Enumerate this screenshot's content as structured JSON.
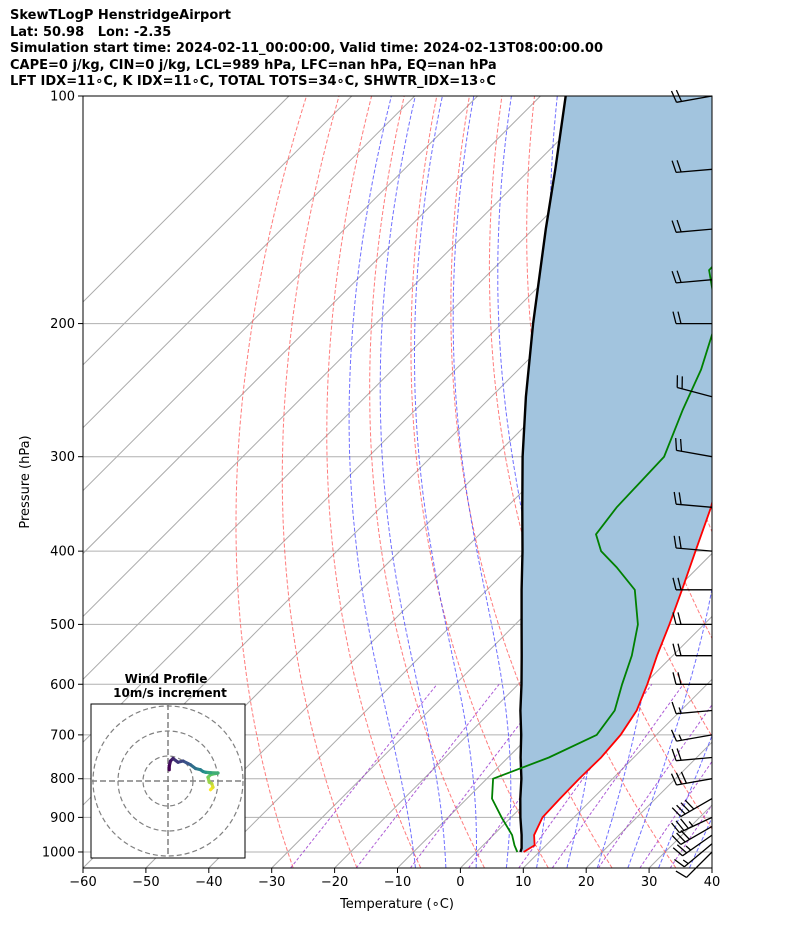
{
  "header": {
    "line1": "SkewTLogP HenstridgeAirport",
    "line2": "Lat: 50.98   Lon: -2.35",
    "line3": "Simulation start time: 2024-02-11_00:00:00, Valid time: 2024-02-13T08:00:00.00",
    "line4": "CAPE=0 j/kg, CIN=0 j/kg, LCL=989 hPa, LFC=nan hPa, EQ=nan hPa",
    "line5": "LFT IDX=11∘C, K IDX=11∘C, TOTAL TOTS=34∘C, SHWTR_IDX=13∘C"
  },
  "chart_data": {
    "type": "line",
    "xlabel": "Temperature (∘C)",
    "ylabel": "Pressure (hPa)",
    "xlim": [
      -60,
      40
    ],
    "ylim": [
      1050,
      100
    ],
    "yscale": "log",
    "xticks": [
      -60,
      -50,
      -40,
      -30,
      -20,
      -10,
      0,
      10,
      20,
      30,
      40
    ],
    "yticks": [
      1000,
      900,
      800,
      700,
      600,
      500,
      400,
      300,
      200,
      100
    ],
    "grid": true,
    "series": [
      {
        "role": "temperature",
        "color": "#ff0000",
        "points": [
          [
            1000,
            7.5
          ],
          [
            980,
            8.2
          ],
          [
            950,
            6.5
          ],
          [
            900,
            5.0
          ],
          [
            850,
            4.8
          ],
          [
            800,
            4.7
          ],
          [
            750,
            4.8
          ],
          [
            700,
            4.3
          ],
          [
            650,
            3.0
          ],
          [
            600,
            0.5
          ],
          [
            550,
            -2.5
          ],
          [
            500,
            -5.5
          ],
          [
            450,
            -9.0
          ],
          [
            400,
            -13.0
          ],
          [
            350,
            -17.5
          ],
          [
            300,
            -23.5
          ],
          [
            260,
            -29.0
          ],
          [
            250,
            -31.0
          ],
          [
            220,
            -31.5
          ],
          [
            200,
            -32.0
          ],
          [
            180,
            -31.5
          ],
          [
            150,
            -29.5
          ],
          [
            130,
            -28.5
          ],
          [
            110,
            -28.5
          ],
          [
            100,
            -29.0
          ]
        ]
      },
      {
        "role": "dewpoint",
        "color": "#008000",
        "points": [
          [
            1000,
            6.5
          ],
          [
            980,
            5.0
          ],
          [
            950,
            3.0
          ],
          [
            900,
            -1.5
          ],
          [
            850,
            -6.0
          ],
          [
            800,
            -9.0
          ],
          [
            750,
            -3.5
          ],
          [
            700,
            0.5
          ],
          [
            650,
            -0.5
          ],
          [
            600,
            -3.5
          ],
          [
            550,
            -6.5
          ],
          [
            500,
            -10.5
          ],
          [
            450,
            -16.5
          ],
          [
            420,
            -23.0
          ],
          [
            400,
            -28.0
          ],
          [
            380,
            -31.5
          ],
          [
            350,
            -32.5
          ],
          [
            300,
            -33.0
          ],
          [
            260,
            -37.5
          ],
          [
            230,
            -41.0
          ],
          [
            200,
            -46.0
          ],
          [
            180,
            -52.0
          ],
          [
            170,
            -55.5
          ],
          [
            150,
            -56.0
          ],
          [
            120,
            -56.5
          ],
          [
            100,
            -58.0
          ]
        ]
      },
      {
        "role": "parcel",
        "color": "#000000",
        "points": [
          [
            1000,
            7.0
          ],
          [
            989,
            6.6
          ],
          [
            950,
            4.5
          ],
          [
            900,
            1.5
          ],
          [
            850,
            -1.5
          ],
          [
            800,
            -4.5
          ],
          [
            750,
            -8.0
          ],
          [
            700,
            -11.5
          ],
          [
            650,
            -15.5
          ],
          [
            600,
            -19.5
          ],
          [
            550,
            -24.0
          ],
          [
            500,
            -29.0
          ],
          [
            450,
            -34.5
          ],
          [
            400,
            -40.5
          ],
          [
            350,
            -47.5
          ],
          [
            300,
            -55.5
          ],
          [
            250,
            -64.5
          ],
          [
            200,
            -75.0
          ],
          [
            150,
            -88.0
          ],
          [
            125,
            -96.0
          ],
          [
            100,
            -106.0
          ]
        ]
      }
    ],
    "wind_barbs": {
      "pressures": [
        1000,
        975,
        950,
        925,
        900,
        850,
        800,
        750,
        700,
        650,
        600,
        550,
        500,
        450,
        400,
        350,
        300,
        250,
        200,
        175,
        150,
        125,
        100
      ],
      "directions_deg": [
        225,
        230,
        235,
        240,
        245,
        240,
        260,
        265,
        260,
        265,
        270,
        270,
        270,
        270,
        275,
        275,
        280,
        285,
        270,
        265,
        265,
        265,
        260
      ],
      "speeds_kt": [
        10,
        15,
        25,
        30,
        35,
        40,
        30,
        20,
        15,
        15,
        20,
        20,
        20,
        20,
        20,
        20,
        20,
        20,
        20,
        20,
        20,
        20,
        20
      ]
    },
    "hodograph": {
      "title_line1": "Wind Profile",
      "title_line2": "10m/s increment",
      "ring_increment_ms": 10,
      "u_ms": [
        17,
        18,
        17.5,
        16.5,
        16,
        17,
        19,
        20,
        17,
        15,
        14,
        13,
        11,
        9,
        8,
        6,
        4,
        2,
        1,
        0.5,
        0.5
      ],
      "v_ms": [
        -3.5,
        -2.5,
        -1,
        -0.5,
        1.5,
        2.5,
        3,
        3.2,
        3.3,
        3.5,
        3.8,
        4.5,
        5,
        6.5,
        7,
        8,
        7.5,
        9,
        8,
        6,
        4.5
      ]
    },
    "colors": {
      "temperature": "#ff0000",
      "dewpoint": "#008000",
      "parcel": "#000000",
      "cape_fill": "#a2c4de",
      "dry_adiabat": "#ff5050",
      "moist_adiabat": "#4040ff",
      "mixing_ratio": "#9933cc",
      "isotherm": "#aaaaaa"
    }
  }
}
